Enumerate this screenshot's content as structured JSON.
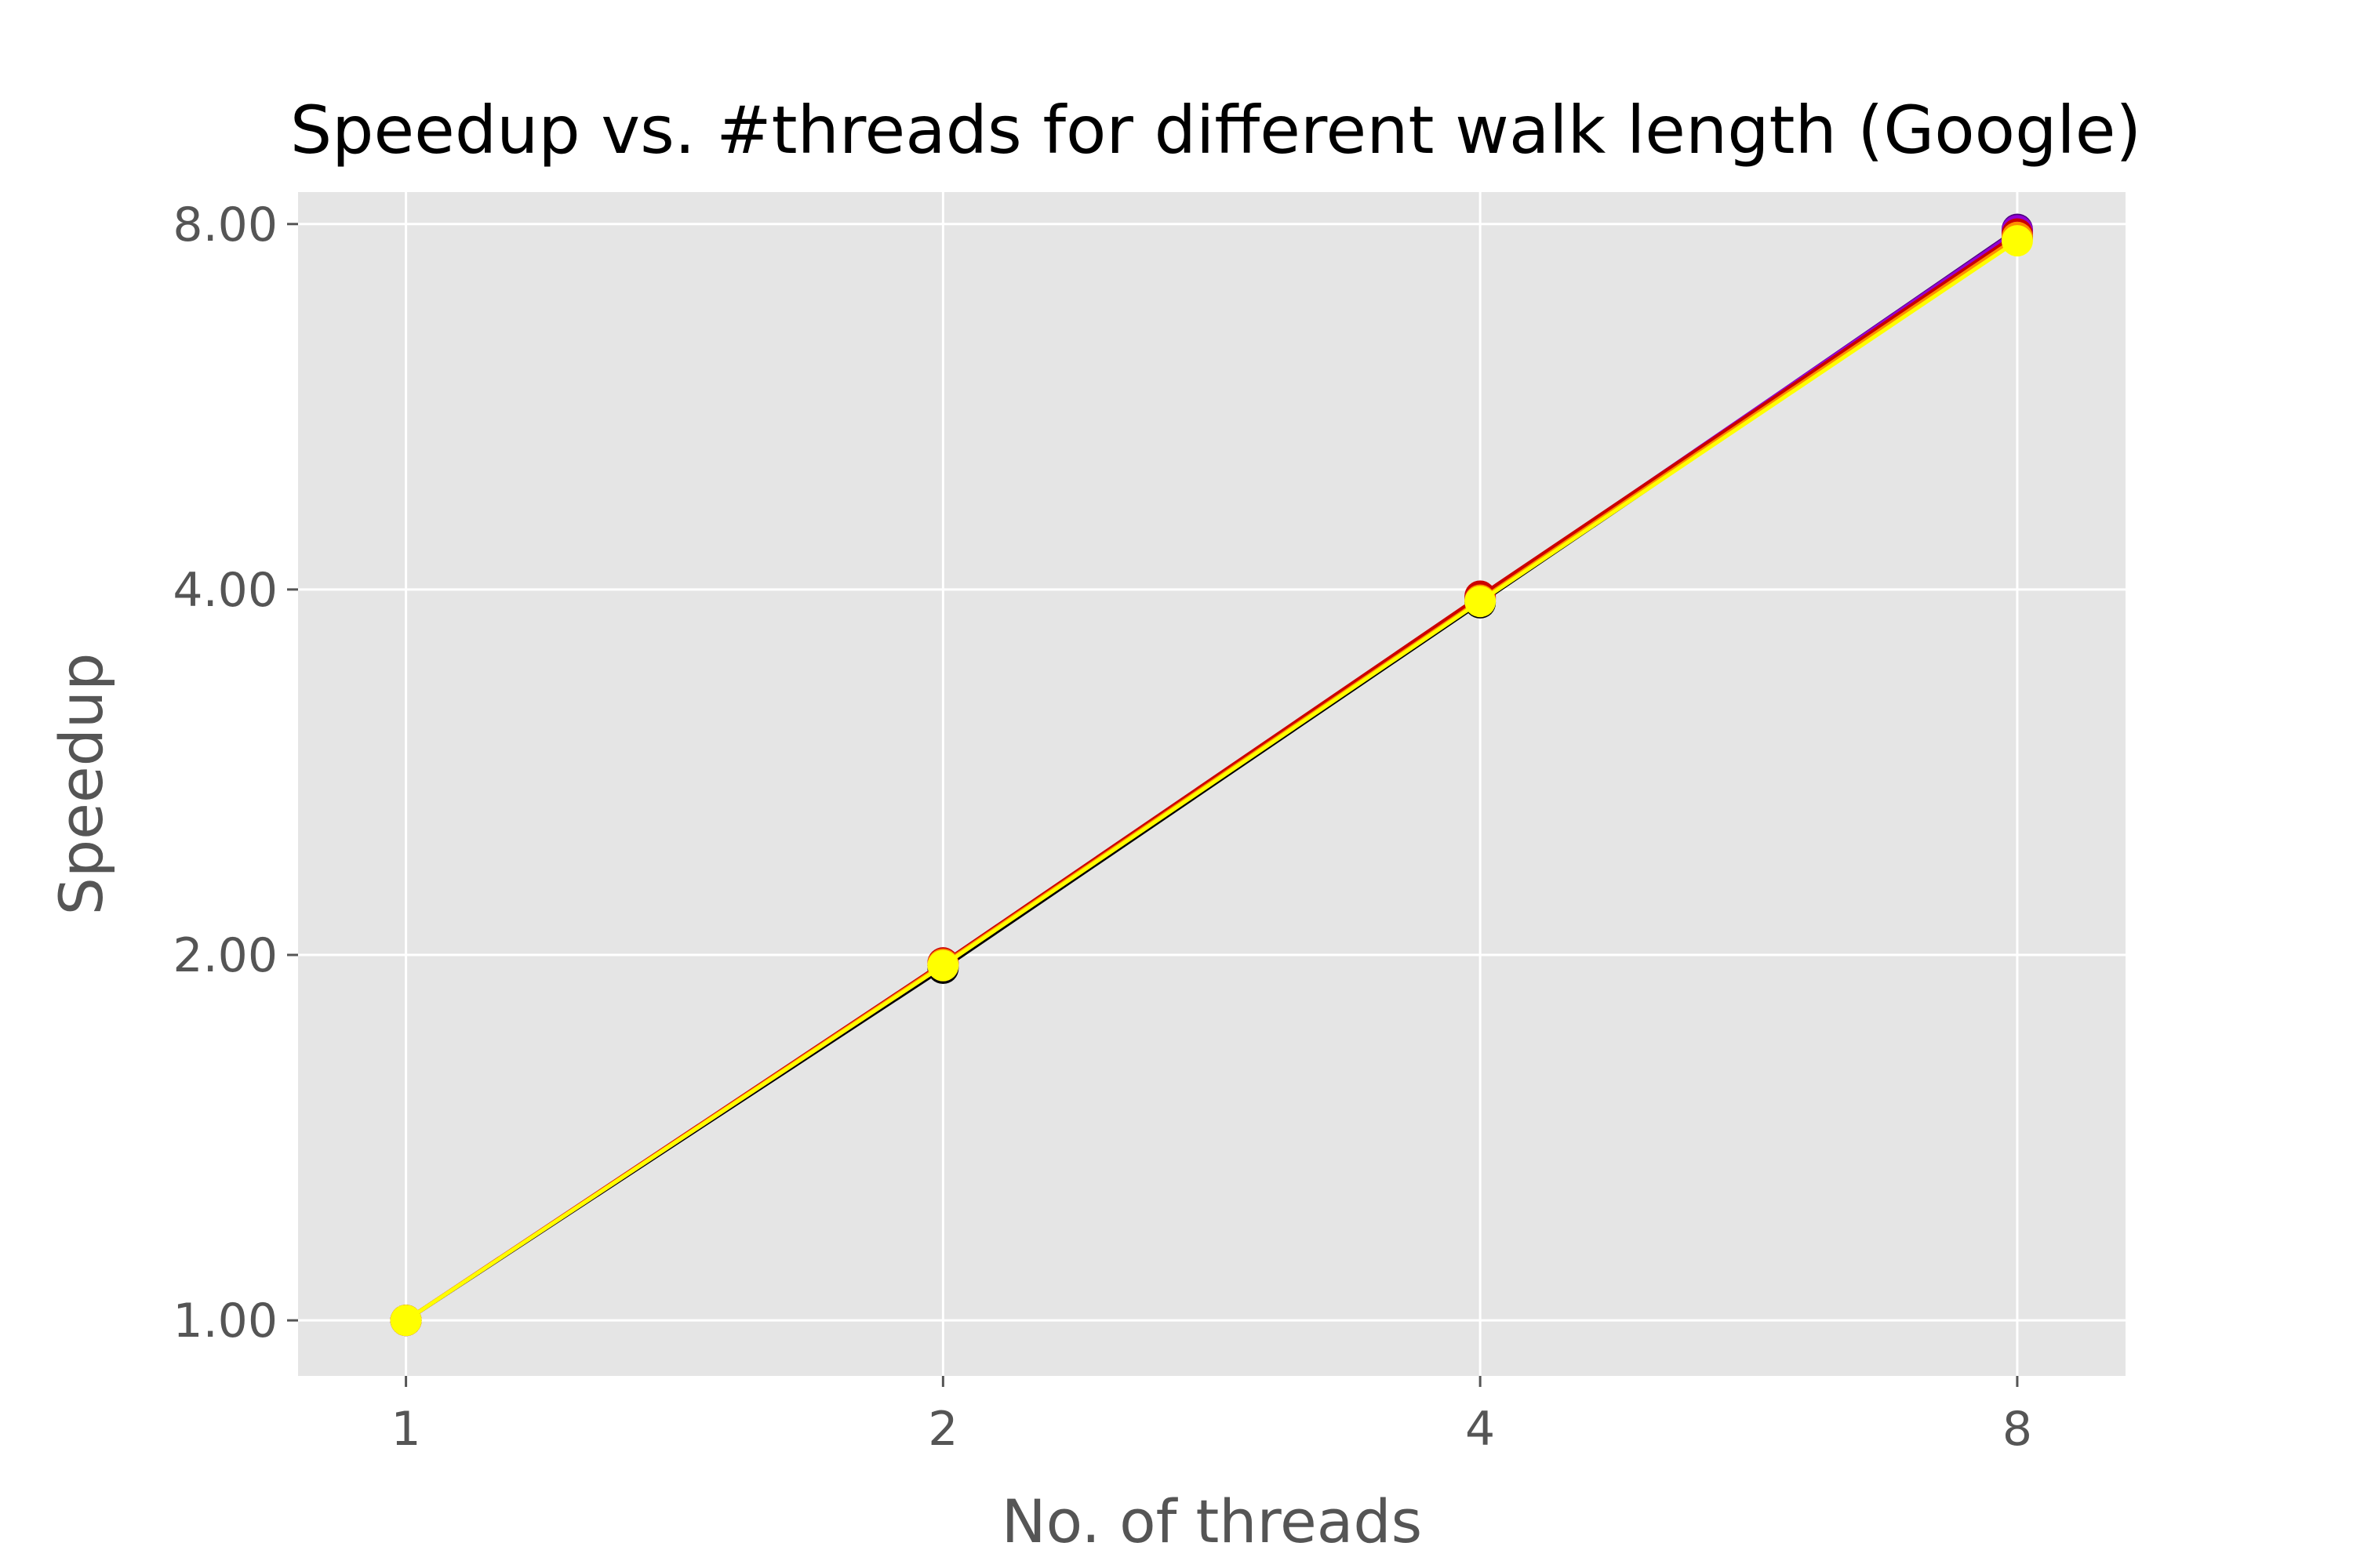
{
  "chart_data": {
    "type": "line",
    "title": "Speedup vs. #threads for different walk length (Google)",
    "xlabel": "No. of threads",
    "ylabel": "Speedup",
    "x": [
      1,
      2,
      4,
      8
    ],
    "x_tick_labels": [
      "1",
      "2",
      "4",
      "8"
    ],
    "y_ticks": [
      1,
      2,
      4,
      8
    ],
    "y_tick_labels": [
      "1.00",
      "2.00",
      "4.00",
      "8.00"
    ],
    "xscale": "log2",
    "yscale": "log2",
    "xlim": [
      0.87,
      9.2
    ],
    "ylim": [
      0.9,
      8.5
    ],
    "grid": true,
    "background": "#e5e5e5",
    "series": [
      {
        "color": "#000000",
        "values": [
          1.0,
          1.95,
          3.9,
          7.8
        ]
      },
      {
        "color": "#4b0082",
        "values": [
          1.0,
          1.96,
          3.93,
          7.92
        ]
      },
      {
        "color": "#9400d3",
        "values": [
          1.0,
          1.96,
          3.94,
          7.9
        ]
      },
      {
        "color": "#cc0000",
        "values": [
          1.0,
          1.97,
          3.95,
          7.85
        ]
      },
      {
        "color": "#ff8c00",
        "values": [
          1.0,
          1.965,
          3.92,
          7.8
        ]
      },
      {
        "color": "#ffff00",
        "values": [
          1.0,
          1.96,
          3.91,
          7.75
        ]
      }
    ]
  }
}
